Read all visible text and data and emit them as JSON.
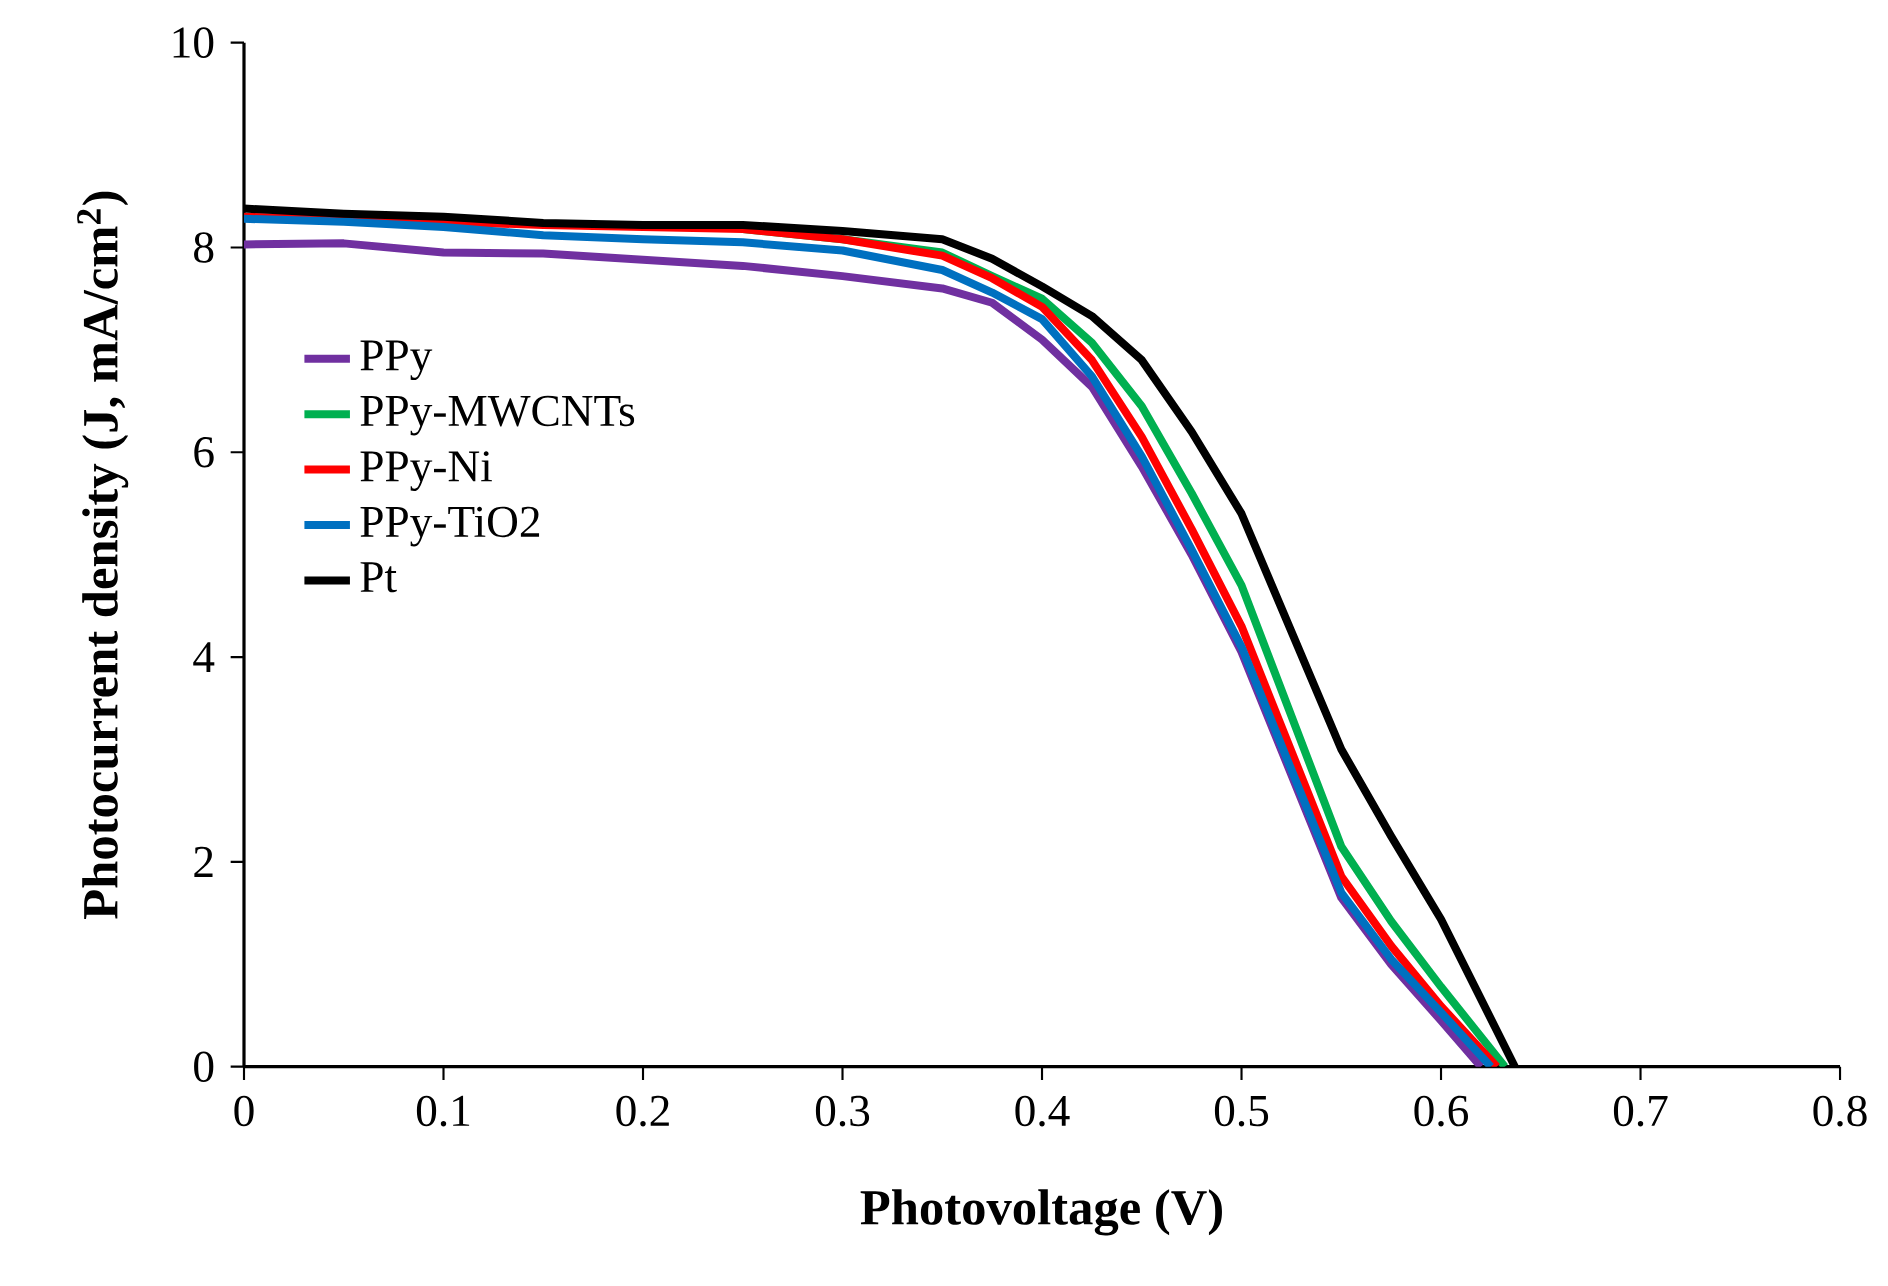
{
  "chart_data": {
    "type": "line",
    "xlabel": "Photovoltage (V)",
    "ylabel": "Photocurrent density (J, mA/cm$^{2}$)",
    "xlim": [
      0,
      0.8
    ],
    "ylim": [
      0,
      10
    ],
    "xticks": [
      0,
      0.1,
      0.2,
      0.3,
      0.4,
      0.5,
      0.6,
      0.7,
      0.8
    ],
    "yticks": [
      0,
      2,
      4,
      6,
      8,
      10
    ],
    "grid": false,
    "legend": "left",
    "marker": "none",
    "line_style": "solid",
    "series": [
      {
        "name": "PPy",
        "color": "#7030a0",
        "x": [
          0,
          0.05,
          0.1,
          0.15,
          0.2,
          0.25,
          0.3,
          0.35,
          0.375,
          0.4,
          0.425,
          0.45,
          0.475,
          0.5,
          0.55,
          0.575,
          0.6,
          0.62
        ],
        "values": [
          8.03,
          8.04,
          7.95,
          7.94,
          7.88,
          7.82,
          7.72,
          7.6,
          7.46,
          7.1,
          6.64,
          5.86,
          5.0,
          4.05,
          1.65,
          1.0,
          0.45,
          0
        ]
      },
      {
        "name": "PPy-MWCNTs",
        "color": "#00b050",
        "x": [
          0.25,
          0.3,
          0.35,
          0.375,
          0.4,
          0.425,
          0.45,
          0.475,
          0.5,
          0.55,
          0.575,
          0.6,
          0.632
        ],
        "values": [
          8.18,
          8.08,
          7.95,
          7.72,
          7.5,
          7.07,
          6.45,
          5.6,
          4.7,
          2.15,
          1.42,
          0.78,
          0
        ]
      },
      {
        "name": "PPy-Ni",
        "color": "#ff0000",
        "x": [
          0,
          0.05,
          0.1,
          0.15,
          0.2,
          0.25,
          0.3,
          0.35,
          0.375,
          0.4,
          0.425,
          0.45,
          0.475,
          0.5,
          0.55,
          0.575,
          0.6,
          0.628
        ],
        "values": [
          8.3,
          8.28,
          8.25,
          8.22,
          8.2,
          8.18,
          8.08,
          7.92,
          7.7,
          7.42,
          6.9,
          6.15,
          5.25,
          4.3,
          1.86,
          1.18,
          0.59,
          0
        ]
      },
      {
        "name": "PPy-TiO2",
        "color": "#0070c0",
        "x": [
          0,
          0.05,
          0.1,
          0.15,
          0.2,
          0.25,
          0.3,
          0.35,
          0.375,
          0.4,
          0.425,
          0.45,
          0.475,
          0.5,
          0.55,
          0.575,
          0.6,
          0.625
        ],
        "values": [
          8.28,
          8.25,
          8.2,
          8.12,
          8.08,
          8.05,
          7.97,
          7.78,
          7.56,
          7.3,
          6.74,
          5.96,
          5.05,
          4.1,
          1.7,
          1.05,
          0.53,
          0
        ]
      },
      {
        "name": "Pt",
        "color": "#000000",
        "x": [
          0,
          0.05,
          0.1,
          0.15,
          0.2,
          0.25,
          0.3,
          0.35,
          0.375,
          0.4,
          0.425,
          0.45,
          0.475,
          0.5,
          0.55,
          0.575,
          0.6,
          0.637
        ],
        "values": [
          8.38,
          8.33,
          8.3,
          8.24,
          8.22,
          8.22,
          8.16,
          8.08,
          7.89,
          7.62,
          7.33,
          6.9,
          6.2,
          5.4,
          3.1,
          2.25,
          1.44,
          0
        ]
      }
    ]
  }
}
